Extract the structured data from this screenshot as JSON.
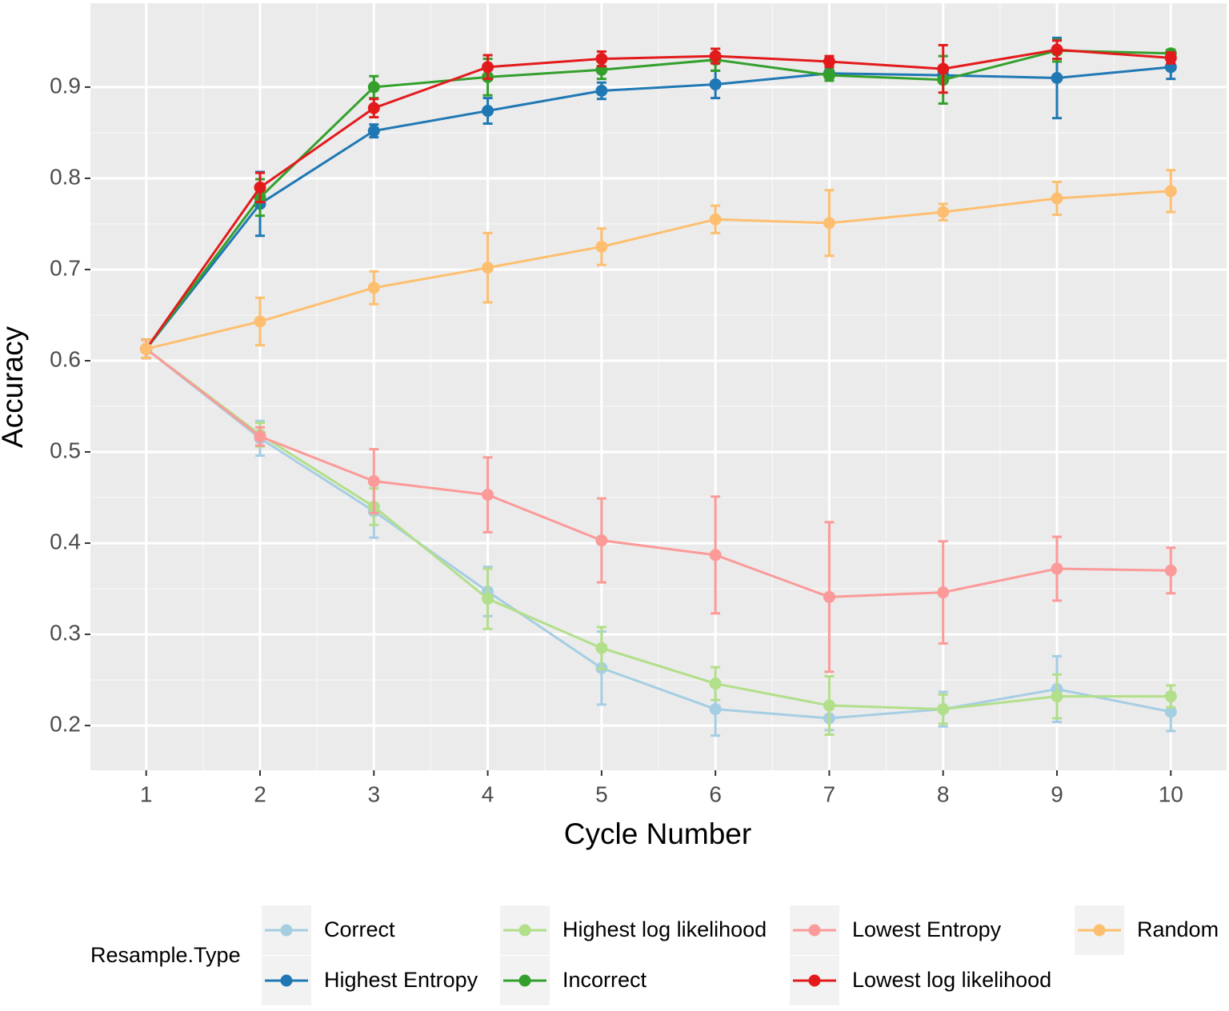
{
  "chart_data": {
    "type": "line",
    "x_label": "Cycle Number",
    "y_label": "Accuracy",
    "x": [
      1,
      2,
      3,
      4,
      5,
      6,
      7,
      8,
      9,
      10
    ],
    "xlim": [
      0.51,
      10.49
    ],
    "xticks": [
      1,
      2,
      3,
      4,
      5,
      6,
      7,
      8,
      9,
      10
    ],
    "ylim": [
      0.151,
      0.992
    ],
    "yticks": [
      0.2,
      0.3,
      0.4,
      0.5,
      0.6,
      0.7,
      0.8,
      0.9
    ],
    "grid": true,
    "legend_title": "Resample.Type",
    "legend_position": "bottom",
    "series": [
      {
        "name": "Correct",
        "color": "#a6cee3",
        "values": [
          0.613,
          0.515,
          0.435,
          0.347,
          0.263,
          0.218,
          0.208,
          0.218,
          0.24,
          0.215
        ],
        "errors": [
          0.01,
          0.019,
          0.029,
          0.027,
          0.04,
          0.029,
          0.013,
          0.019,
          0.036,
          0.021
        ]
      },
      {
        "name": "Highest Entropy",
        "color": "#1f78b4",
        "values": [
          0.613,
          0.772,
          0.852,
          0.874,
          0.896,
          0.903,
          0.915,
          0.913,
          0.91,
          0.922
        ],
        "errors": [
          0.01,
          0.035,
          0.007,
          0.014,
          0.009,
          0.015,
          0.004,
          0.007,
          0.044,
          0.013
        ]
      },
      {
        "name": "Highest log likelihood",
        "color": "#b2df8a",
        "values": [
          0.613,
          0.519,
          0.44,
          0.339,
          0.285,
          0.246,
          0.222,
          0.218,
          0.232,
          0.232
        ],
        "errors": [
          0.01,
          0.013,
          0.02,
          0.033,
          0.023,
          0.018,
          0.032,
          0.016,
          0.024,
          0.012
        ]
      },
      {
        "name": "Incorrect",
        "color": "#33a02c",
        "values": [
          0.613,
          0.779,
          0.9,
          0.911,
          0.919,
          0.93,
          0.913,
          0.908,
          0.94,
          0.937
        ],
        "errors": [
          0.01,
          0.02,
          0.012,
          0.02,
          0.01,
          0.012,
          0.006,
          0.026,
          0.012,
          0.004
        ]
      },
      {
        "name": "Lowest Entropy",
        "color": "#fb9a99",
        "values": [
          0.613,
          0.517,
          0.468,
          0.453,
          0.403,
          0.387,
          0.341,
          0.346,
          0.372,
          0.37
        ],
        "errors": [
          0.01,
          0.01,
          0.035,
          0.041,
          0.046,
          0.064,
          0.082,
          0.056,
          0.035,
          0.025
        ]
      },
      {
        "name": "Lowest log likelihood",
        "color": "#e31a1c",
        "values": [
          0.613,
          0.79,
          0.877,
          0.922,
          0.931,
          0.934,
          0.928,
          0.92,
          0.941,
          0.932
        ],
        "errors": [
          0.01,
          0.016,
          0.01,
          0.013,
          0.008,
          0.008,
          0.006,
          0.026,
          0.01,
          0.006
        ]
      },
      {
        "name": "Random",
        "color": "#fdbf6f",
        "values": [
          0.613,
          0.643,
          0.68,
          0.702,
          0.725,
          0.755,
          0.751,
          0.763,
          0.778,
          0.786
        ],
        "errors": [
          0.01,
          0.026,
          0.018,
          0.038,
          0.02,
          0.015,
          0.036,
          0.009,
          0.018,
          0.023
        ]
      }
    ]
  }
}
